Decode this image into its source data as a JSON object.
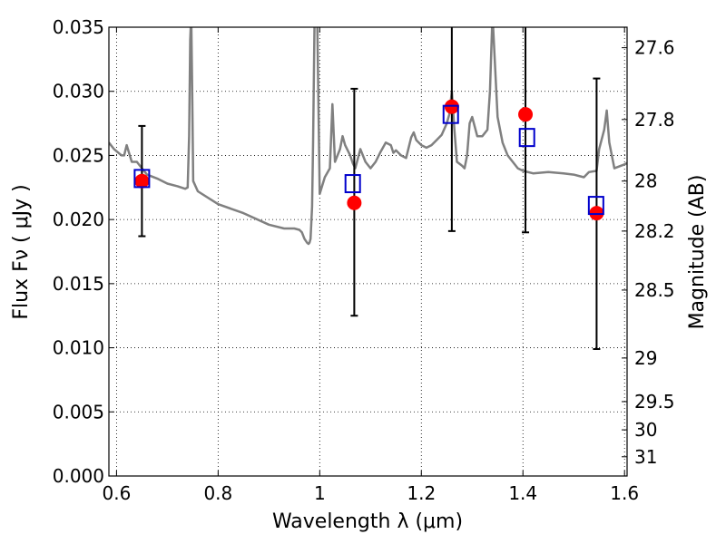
{
  "chart_data": {
    "type": "scatter",
    "title": "",
    "xlabel": "Wavelength  λ (μm)",
    "ylabel": "Flux  Fν  ( μJy )",
    "ylabel_right": "Magnitude (AB)",
    "xlim": [
      0.585,
      1.605
    ],
    "ylim": [
      0.0,
      0.035
    ],
    "grid": true,
    "grid_style": "dotted",
    "x_ticks": [
      0.6,
      0.8,
      1.0,
      1.2,
      1.4,
      1.6
    ],
    "x_tick_labels": [
      "0.6",
      "0.8",
      "1",
      "1.2",
      "1.4",
      "1.6"
    ],
    "y_ticks": [
      0.0,
      0.005,
      0.01,
      0.015,
      0.02,
      0.025,
      0.03,
      0.035
    ],
    "y_tick_labels": [
      "0.000",
      "0.005",
      "0.010",
      "0.015",
      "0.020",
      "0.025",
      "0.030",
      "0.035"
    ],
    "right_ticks": [
      {
        "label": "27.6",
        "flux": 0.0334
      },
      {
        "label": "27.8",
        "flux": 0.0278
      },
      {
        "label": "28",
        "flux": 0.023
      },
      {
        "label": "28.2",
        "flux": 0.0191
      },
      {
        "label": "28.5",
        "flux": 0.0145
      },
      {
        "label": "29",
        "flux": 0.0092
      },
      {
        "label": "29.5",
        "flux": 0.0058
      },
      {
        "label": "30",
        "flux": 0.0036
      },
      {
        "label": "31",
        "flux": 0.0015
      }
    ],
    "series": [
      {
        "kind": "line",
        "color": "#808080",
        "x": [
          0.585,
          0.595,
          0.61,
          0.615,
          0.62,
          0.63,
          0.64,
          0.65,
          0.66,
          0.68,
          0.7,
          0.72,
          0.735,
          0.74,
          0.743,
          0.745,
          0.747,
          0.749,
          0.751,
          0.76,
          0.8,
          0.85,
          0.9,
          0.93,
          0.95,
          0.96,
          0.965,
          0.97,
          0.975,
          0.978,
          0.98,
          0.982,
          0.985,
          0.987,
          0.99,
          0.995,
          1.0,
          1.01,
          1.02,
          1.025,
          1.03,
          1.035,
          1.04,
          1.045,
          1.05,
          1.06,
          1.065,
          1.07,
          1.08,
          1.09,
          1.1,
          1.11,
          1.12,
          1.13,
          1.14,
          1.145,
          1.15,
          1.16,
          1.17,
          1.175,
          1.18,
          1.185,
          1.19,
          1.2,
          1.21,
          1.22,
          1.23,
          1.24,
          1.25,
          1.255,
          1.26,
          1.265,
          1.27,
          1.28,
          1.285,
          1.29,
          1.295,
          1.3,
          1.31,
          1.32,
          1.33,
          1.335,
          1.34,
          1.35,
          1.36,
          1.37,
          1.38,
          1.39,
          1.4,
          1.42,
          1.45,
          1.48,
          1.5,
          1.52,
          1.53,
          1.545,
          1.55,
          1.56,
          1.565,
          1.57,
          1.58,
          1.6,
          1.605
        ],
        "y": [
          0.026,
          0.0255,
          0.025,
          0.025,
          0.0258,
          0.0245,
          0.0245,
          0.024,
          0.0235,
          0.0232,
          0.0228,
          0.0226,
          0.0224,
          0.0225,
          0.0265,
          0.034,
          0.036,
          0.03,
          0.023,
          0.0222,
          0.0212,
          0.0205,
          0.0196,
          0.0193,
          0.0193,
          0.0192,
          0.019,
          0.0185,
          0.0182,
          0.0181,
          0.0182,
          0.0185,
          0.021,
          0.026,
          0.036,
          0.036,
          0.022,
          0.0233,
          0.024,
          0.029,
          0.0245,
          0.025,
          0.0255,
          0.0265,
          0.0258,
          0.025,
          0.0244,
          0.024,
          0.0255,
          0.0245,
          0.024,
          0.0245,
          0.0253,
          0.026,
          0.0258,
          0.0252,
          0.0254,
          0.025,
          0.0248,
          0.0256,
          0.0264,
          0.0268,
          0.0262,
          0.0258,
          0.0256,
          0.0258,
          0.0262,
          0.0266,
          0.0275,
          0.0282,
          0.03,
          0.027,
          0.0245,
          0.0242,
          0.024,
          0.025,
          0.0275,
          0.028,
          0.0265,
          0.0265,
          0.027,
          0.03,
          0.036,
          0.028,
          0.026,
          0.025,
          0.0245,
          0.024,
          0.0238,
          0.0236,
          0.0237,
          0.0236,
          0.0235,
          0.0233,
          0.0237,
          0.0238,
          0.0255,
          0.027,
          0.0285,
          0.026,
          0.024,
          0.0243,
          0.0244
        ]
      },
      {
        "kind": "observed",
        "marker": "circle",
        "color": "#ff0000",
        "x": [
          0.65,
          1.068,
          1.26,
          1.405,
          1.545
        ],
        "y": [
          0.023,
          0.0213,
          0.0288,
          0.0282,
          0.0205
        ],
        "yerr_low": [
          0.0187,
          0.0125,
          0.0191,
          0.019,
          0.0099
        ],
        "yerr_high": [
          0.0273,
          0.0302,
          0.0357,
          0.0357,
          0.031
        ]
      },
      {
        "kind": "model",
        "marker": "open-square",
        "color": "#0000cc",
        "x": [
          0.65,
          1.065,
          1.258,
          1.408,
          1.544
        ],
        "y": [
          0.0232,
          0.0228,
          0.0282,
          0.0264,
          0.0211
        ]
      }
    ]
  }
}
